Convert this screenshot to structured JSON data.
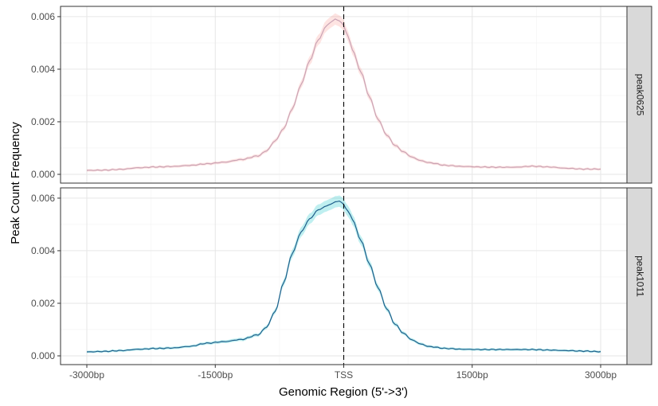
{
  "chart_data": {
    "type": "line",
    "xlabel": "Genomic Region (5'->3')",
    "ylabel": "Peak Count Frequency",
    "xlim": [
      -3000,
      3000
    ],
    "ylim": [
      0,
      0.0063
    ],
    "x_ticks": [
      {
        "value": -3000,
        "label": "-3000bp"
      },
      {
        "value": -1500,
        "label": "-1500bp"
      },
      {
        "value": 0,
        "label": "TSS"
      },
      {
        "value": 1500,
        "label": "1500bp"
      },
      {
        "value": 3000,
        "label": "3000bp"
      }
    ],
    "y_ticks": [
      {
        "value": 0,
        "label": "0.000"
      },
      {
        "value": 0.002,
        "label": "0.002"
      },
      {
        "value": 0.004,
        "label": "0.004"
      },
      {
        "value": 0.006,
        "label": "0.006"
      }
    ],
    "reference_line": {
      "x": 0,
      "style": "dashed"
    },
    "grid": true,
    "panels": [
      {
        "strip": "peak0625",
        "line_color": "#c9a3b5",
        "band_color": "#f8766d",
        "band_opacity": 0.2,
        "x": [
          -3000,
          -2800,
          -2600,
          -2400,
          -2200,
          -2000,
          -1800,
          -1600,
          -1400,
          -1200,
          -1000,
          -900,
          -800,
          -700,
          -600,
          -500,
          -400,
          -300,
          -200,
          -150,
          -100,
          -50,
          0,
          50,
          100,
          200,
          300,
          400,
          500,
          600,
          700,
          800,
          900,
          1000,
          1200,
          1400,
          1600,
          1800,
          2000,
          2200,
          2400,
          2600,
          2800,
          3000
        ],
        "y": [
          0.00015,
          0.00016,
          0.00019,
          0.00025,
          0.00028,
          0.0003,
          0.00034,
          0.0004,
          0.00046,
          0.00056,
          0.0007,
          0.0009,
          0.00128,
          0.00175,
          0.0025,
          0.0034,
          0.0043,
          0.0051,
          0.00565,
          0.0058,
          0.0059,
          0.00585,
          0.00565,
          0.00525,
          0.00475,
          0.0039,
          0.00295,
          0.0021,
          0.0015,
          0.0011,
          0.00085,
          0.00065,
          0.00052,
          0.00044,
          0.00034,
          0.0003,
          0.00028,
          0.00027,
          0.00027,
          0.00031,
          0.00028,
          0.00023,
          0.0002,
          0.0002
        ]
      },
      {
        "strip": "peak1011",
        "line_color": "#1f5f8b",
        "band_color": "#00bfc4",
        "band_opacity": 0.25,
        "x": [
          -3000,
          -2800,
          -2600,
          -2400,
          -2200,
          -2000,
          -1800,
          -1600,
          -1400,
          -1200,
          -1000,
          -900,
          -800,
          -700,
          -600,
          -500,
          -400,
          -300,
          -200,
          -150,
          -100,
          -50,
          0,
          50,
          100,
          200,
          300,
          400,
          500,
          600,
          700,
          800,
          900,
          1000,
          1200,
          1400,
          1600,
          1800,
          2000,
          2200,
          2400,
          2600,
          2800,
          3000
        ],
        "y": [
          0.00015,
          0.00017,
          0.0002,
          0.00025,
          0.00028,
          0.0003,
          0.00036,
          0.00048,
          0.00054,
          0.00062,
          0.0008,
          0.0011,
          0.0017,
          0.0028,
          0.0039,
          0.0047,
          0.0052,
          0.00555,
          0.0057,
          0.00578,
          0.00585,
          0.0059,
          0.00575,
          0.0055,
          0.0052,
          0.0044,
          0.0035,
          0.0026,
          0.0018,
          0.0012,
          0.00085,
          0.0006,
          0.00045,
          0.00035,
          0.00028,
          0.00025,
          0.00024,
          0.00024,
          0.00024,
          0.00024,
          0.00022,
          0.0002,
          0.00018,
          0.00016
        ]
      }
    ]
  }
}
